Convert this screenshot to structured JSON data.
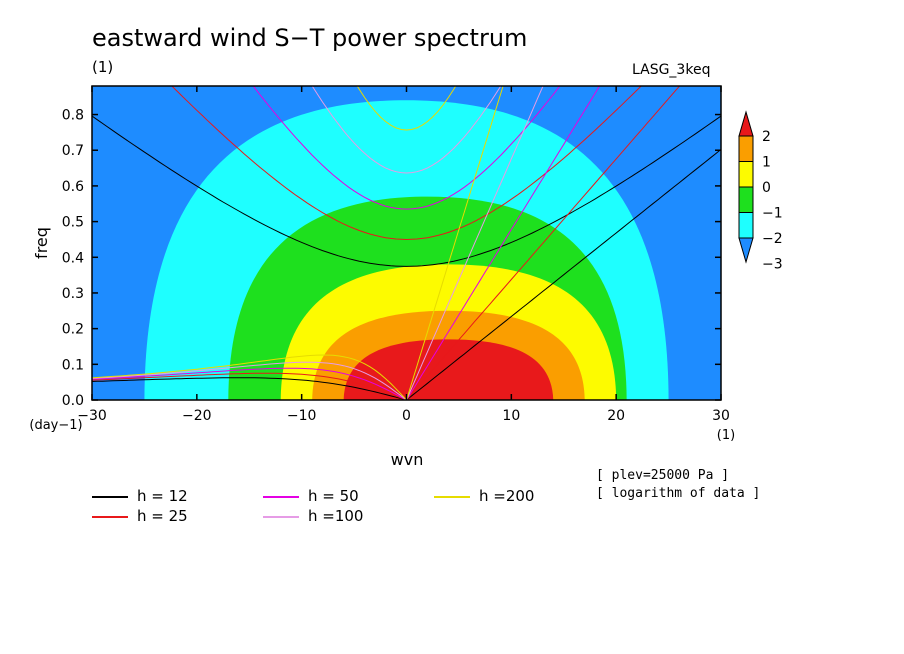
{
  "header": {
    "title": "eastward wind S−T power spectrum",
    "unit_label": "(1)",
    "model_label": "LASG_3keq"
  },
  "chart_data": {
    "type": "heatmap",
    "title": "eastward wind S−T power spectrum",
    "xlabel": "wvn",
    "ylabel": "freq",
    "x_unit": "(1)",
    "y_unit": "(day−1)",
    "xlim": [
      -30,
      30
    ],
    "ylim": [
      0,
      0.88
    ],
    "x_ticks": [
      -30,
      -20,
      -10,
      0,
      10,
      20,
      30
    ],
    "x_tick_labels": [
      "−30",
      "−20",
      "−10",
      "0",
      "10",
      "20",
      "30"
    ],
    "y_ticks": [
      0,
      0.1,
      0.2,
      0.3,
      0.4,
      0.5,
      0.6,
      0.7,
      0.8
    ],
    "y_tick_labels": [
      "0.0",
      "0.1",
      "0.2",
      "0.3",
      "0.4",
      "0.5",
      "0.6",
      "0.7",
      "0.8"
    ],
    "colorbar": {
      "levels": [
        2,
        1,
        0,
        -1,
        -2,
        -3
      ],
      "level_labels": [
        "2",
        "1",
        "0",
        "−1",
        "−2",
        "−3"
      ],
      "colors": [
        "#e8191b",
        "#fa9e00",
        "#fdfb00",
        "#1ee01e",
        "#1effff",
        "#1e8cff"
      ]
    },
    "contour_bands": [
      {
        "level": 2,
        "color": "#e8191b",
        "center_x": 4,
        "half_width_x": 10,
        "top_y": 0.17
      },
      {
        "level": 1,
        "color": "#fa9e00",
        "center_x": 4,
        "half_width_x": 13,
        "top_y": 0.25
      },
      {
        "level": 0,
        "color": "#fdfb00",
        "center_x": 4,
        "half_width_x": 16,
        "top_y": 0.38
      },
      {
        "level": -1,
        "color": "#1ee01e",
        "center_x": 2,
        "half_width_x": 19,
        "top_y": 0.57
      },
      {
        "level": -2,
        "color": "#1effff",
        "center_x": 0,
        "half_width_x": 25,
        "top_y": 0.84
      },
      {
        "level": -3,
        "color": "#1e8cff",
        "center_x": 0,
        "half_width_x": 30,
        "top_y": 0.88
      }
    ],
    "dispersion_curves": [
      {
        "name": "h = 12",
        "h": 12,
        "color": "#000000"
      },
      {
        "name": "h = 25",
        "h": 25,
        "color": "#e8191b"
      },
      {
        "name": "h = 50",
        "h": 50,
        "color": "#e400e4"
      },
      {
        "name": "h =100",
        "h": 100,
        "color": "#e69ce6"
      },
      {
        "name": "h =200",
        "h": 200,
        "color": "#e6dc00"
      }
    ],
    "notes": [
      "[ plev=25000 Pa ]",
      "[ logarithm of data ]"
    ]
  },
  "legend": {
    "items": [
      {
        "label": "h = 12",
        "color": "#000000"
      },
      {
        "label": "h = 25",
        "color": "#e8191b"
      },
      {
        "label": "h = 50",
        "color": "#e400e4"
      },
      {
        "label": "h =100",
        "color": "#e69ce6"
      },
      {
        "label": "h =200",
        "color": "#e6dc00"
      }
    ]
  }
}
